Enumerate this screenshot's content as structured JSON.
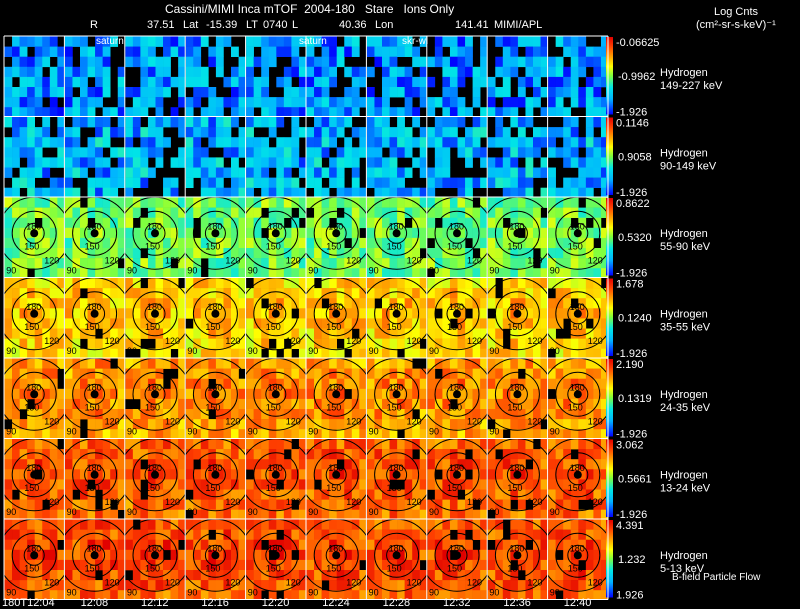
{
  "chart_data": {
    "type": "heatmap",
    "title": "Cassini/MIMI Inca mTOF  2004-180   Stare   Ions Only",
    "header": {
      "r_label": "R",
      "r": "37.51",
      "lat_label": "Lat",
      "lat": "-15.39",
      "lt_label": "LT",
      "lt": "0740",
      "l_label": "L",
      "l": "40.36",
      "lon_label": "Lon",
      "lon": "141.41",
      "source": "MIMI/APL"
    },
    "colorbar_title": "Log Cnts",
    "colorbar_units": "(cm²-sr-s-keV)⁻¹",
    "columns": [
      "180T12:04",
      "12:08",
      "12:12",
      "12:16",
      "12:20",
      "12:24",
      "12:28",
      "12:32",
      "12:36",
      "12:40"
    ],
    "overlay_labels": [
      "saturn",
      "saturn",
      "skr-wl"
    ],
    "species": "Hydrogen",
    "rows": [
      {
        "energy": "149-227 keV",
        "cmax": "-0.06625",
        "cmid": "-0.9962",
        "cmin": "-1.926",
        "level": 0.18
      },
      {
        "energy": "90-149 keV",
        "cmax": "0.1146",
        "cmid": "0.9058",
        "cmin": "-1.926",
        "level": 0.22
      },
      {
        "energy": "55-90 keV",
        "cmax": "0.8622",
        "cmid": "0.5320",
        "cmin": "-1.926",
        "level": 0.48
      },
      {
        "energy": "35-55 keV",
        "cmax": "1.678",
        "cmid": "0.1240",
        "cmin": "-1.926",
        "level": 0.66
      },
      {
        "energy": "24-35 keV",
        "cmax": "2.190",
        "cmid": "0.1319",
        "cmin": "-1.926",
        "level": 0.74
      },
      {
        "energy": "13-24 keV",
        "cmax": "3.062",
        "cmid": "0.5661",
        "cmin": "-1.926",
        "level": 0.82
      },
      {
        "energy": "5-13 keV",
        "cmax": "4.391",
        "cmid": "1.232",
        "cmin": "1.926",
        "level": 0.84
      }
    ],
    "contour_labels": [
      "180",
      "150",
      "120",
      "90"
    ],
    "legend_note": "B-field Particle Flow"
  }
}
